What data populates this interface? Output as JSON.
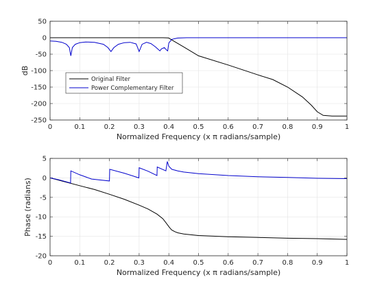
{
  "chart_data": [
    {
      "type": "line",
      "xlabel": "Normalized Frequency (x π radians/sample)",
      "ylabel": "dB",
      "xlim": [
        0,
        1
      ],
      "ylim": [
        -250,
        50
      ],
      "xticks": [
        "0",
        "0.1",
        "0.2",
        "0.3",
        "0.4",
        "0.5",
        "0.6",
        "0.7",
        "0.8",
        "0.9",
        "1"
      ],
      "yticks": [
        "50",
        "0",
        "-50",
        "-100",
        "-150",
        "-200",
        "-250"
      ],
      "grid": true,
      "legend_position": "lower-left",
      "series": [
        {
          "name": "Original Filter",
          "color": "#000000",
          "x": [
            0,
            0.1,
            0.2,
            0.3,
            0.35,
            0.38,
            0.395,
            0.4,
            0.405,
            0.42,
            0.45,
            0.5,
            0.6,
            0.7,
            0.75,
            0.8,
            0.85,
            0.88,
            0.9,
            0.92,
            0.95,
            1.0
          ],
          "y": [
            0,
            0,
            0,
            0,
            0,
            0,
            -0.5,
            -1,
            -4,
            -12,
            -28,
            -55,
            -83,
            -113,
            -127,
            -150,
            -180,
            -205,
            -225,
            -236,
            -238,
            -238
          ]
        },
        {
          "name": "Power Complementary Filter",
          "color": "#0000cc",
          "x": [
            0,
            0.02,
            0.04,
            0.055,
            0.065,
            0.07,
            0.075,
            0.085,
            0.1,
            0.12,
            0.15,
            0.18,
            0.195,
            0.205,
            0.215,
            0.23,
            0.25,
            0.27,
            0.29,
            0.3,
            0.31,
            0.325,
            0.34,
            0.355,
            0.365,
            0.37,
            0.375,
            0.385,
            0.392,
            0.396,
            0.4,
            0.41,
            0.43,
            0.46,
            0.5,
            0.6,
            0.8,
            1.0
          ],
          "y": [
            -10,
            -11,
            -14,
            -20,
            -30,
            -55,
            -30,
            -20,
            -15,
            -13,
            -14,
            -20,
            -30,
            -42,
            -30,
            -20,
            -15,
            -14,
            -19,
            -42,
            -20,
            -14,
            -18,
            -28,
            -36,
            -40,
            -34,
            -30,
            -37,
            -40,
            -16,
            -5,
            -1,
            0,
            0,
            0,
            0,
            0
          ]
        }
      ]
    },
    {
      "type": "line",
      "xlabel": "Normalized Frequency (x π radians/sample)",
      "ylabel": "Phase (radians)",
      "xlim": [
        0,
        1
      ],
      "ylim": [
        -20,
        5
      ],
      "xticks": [
        "0",
        "0.1",
        "0.2",
        "0.3",
        "0.4",
        "0.5",
        "0.6",
        "0.7",
        "0.8",
        "0.9",
        "1"
      ],
      "yticks": [
        "5",
        "0",
        "-5",
        "-10",
        "-15",
        "-20"
      ],
      "grid": true,
      "series": [
        {
          "color": "#000000",
          "x": [
            0,
            0.05,
            0.1,
            0.15,
            0.2,
            0.25,
            0.3,
            0.33,
            0.36,
            0.38,
            0.39,
            0.4,
            0.405,
            0.41,
            0.42,
            0.43,
            0.45,
            0.5,
            0.6,
            0.7,
            0.8,
            0.9,
            1.0
          ],
          "y": [
            0,
            -1,
            -2,
            -3,
            -4.2,
            -5.5,
            -7,
            -8,
            -9.3,
            -10.5,
            -11.5,
            -12.5,
            -13,
            -13.4,
            -13.8,
            -14.1,
            -14.4,
            -14.8,
            -15.1,
            -15.3,
            -15.5,
            -15.6,
            -15.8
          ]
        },
        {
          "color": "#0000cc",
          "x": [
            0,
            0.03,
            0.069,
            0.07,
            0.1,
            0.14,
            0.2,
            0.201,
            0.25,
            0.299,
            0.3,
            0.33,
            0.36,
            0.361,
            0.39,
            0.395,
            0.4,
            0.41,
            0.43,
            0.45,
            0.5,
            0.6,
            0.7,
            0.8,
            0.9,
            1.0
          ],
          "y": [
            0,
            -0.5,
            -1.3,
            1.8,
            0.8,
            -0.3,
            -0.8,
            2.2,
            1.2,
            0,
            2.6,
            1.7,
            0.6,
            2.8,
            1.8,
            4.2,
            3.0,
            2.2,
            1.8,
            1.5,
            1.1,
            0.6,
            0.3,
            0.1,
            -0.1,
            -0.2
          ]
        }
      ]
    }
  ]
}
